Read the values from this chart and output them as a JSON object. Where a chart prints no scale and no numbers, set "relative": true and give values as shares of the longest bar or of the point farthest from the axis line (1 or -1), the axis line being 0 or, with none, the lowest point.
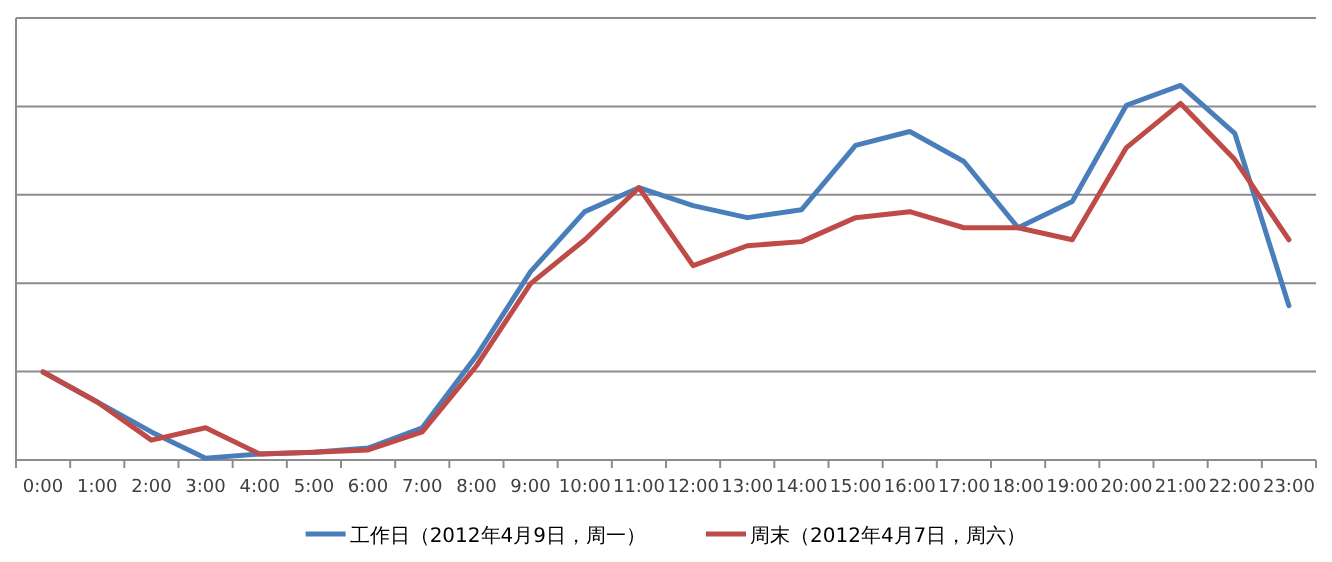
{
  "chart_data": {
    "type": "line",
    "relative": true,
    "grid": "y",
    "legend": "bottom",
    "marker": "none",
    "line_style": "solid",
    "categories": [
      "0:00",
      "1:00",
      "2:00",
      "3:00",
      "4:00",
      "5:00",
      "6:00",
      "7:00",
      "8:00",
      "9:00",
      "10:00",
      "11:00",
      "12:00",
      "13:00",
      "14:00",
      "15:00",
      "16:00",
      "17:00",
      "18:00",
      "19:00",
      "20:00",
      "21:00",
      "22:00",
      "23:00"
    ],
    "series": [
      {
        "name": "工作日（2012年4月9日，周一）",
        "color": "#4a7ebb",
        "values": [
          0.235,
          0.155,
          0.075,
          0.005,
          0.016,
          0.021,
          0.032,
          0.086,
          0.278,
          0.503,
          0.663,
          0.727,
          0.679,
          0.647,
          0.668,
          0.84,
          0.877,
          0.797,
          0.62,
          0.69,
          0.947,
          1,
          0.872,
          0.412
        ]
      },
      {
        "name": "周末（2012年4月7日，周六）",
        "color": "#be4b48",
        "values": [
          0.235,
          0.155,
          0.053,
          0.086,
          0.016,
          0.021,
          0.027,
          0.075,
          0.251,
          0.471,
          0.588,
          0.727,
          0.519,
          0.572,
          0.583,
          0.647,
          0.663,
          0.62,
          0.62,
          0.588,
          0.834,
          0.952,
          0.802,
          0.588
        ]
      }
    ]
  }
}
